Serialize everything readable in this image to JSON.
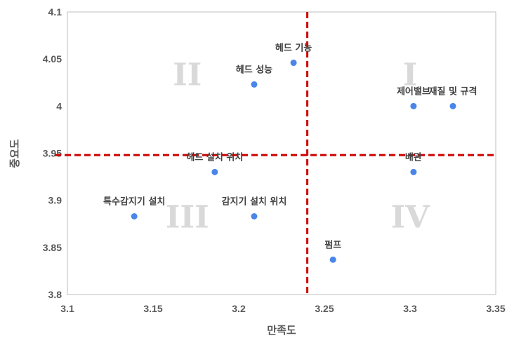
{
  "chart_data": {
    "type": "scatter",
    "title": "",
    "xlabel": "만족도",
    "ylabel": "중요도",
    "xlim": [
      3.1,
      3.35
    ],
    "ylim": [
      3.8,
      4.1
    ],
    "xticks": [
      "3.1",
      "3.15",
      "3.2",
      "3.25",
      "3.3",
      "3.35"
    ],
    "yticks": [
      "3.8",
      "3.85",
      "3.9",
      "3.95",
      "4",
      "4.05",
      "4.1"
    ],
    "points": [
      {
        "label": "헤드 기능",
        "x": 3.232,
        "y": 4.046
      },
      {
        "label": "헤드 성능",
        "x": 3.209,
        "y": 4.023
      },
      {
        "label": "제어밸브",
        "x": 3.302,
        "y": 4.0
      },
      {
        "label": "재질 및 규격",
        "x": 3.325,
        "y": 4.0
      },
      {
        "label": "헤드 설치 위치",
        "x": 3.186,
        "y": 3.93
      },
      {
        "label": "배관",
        "x": 3.302,
        "y": 3.93
      },
      {
        "label": "특수감지기 설치",
        "x": 3.139,
        "y": 3.883
      },
      {
        "label": "감지기 설치 위치",
        "x": 3.209,
        "y": 3.883
      },
      {
        "label": "펌프",
        "x": 3.255,
        "y": 3.837
      }
    ],
    "reference_lines": {
      "x_mean": 3.24,
      "y_mean": 3.948,
      "color": "#cc0000",
      "style": "dashed"
    },
    "quadrants": [
      {
        "label": "I",
        "x": 3.3,
        "y": 4.034
      },
      {
        "label": "II",
        "x": 3.17,
        "y": 4.034
      },
      {
        "label": "III",
        "x": 3.17,
        "y": 3.883
      },
      {
        "label": "IV",
        "x": 3.3,
        "y": 3.883
      }
    ],
    "grid": false,
    "legend": "none",
    "point_color": "#4a86e8"
  }
}
